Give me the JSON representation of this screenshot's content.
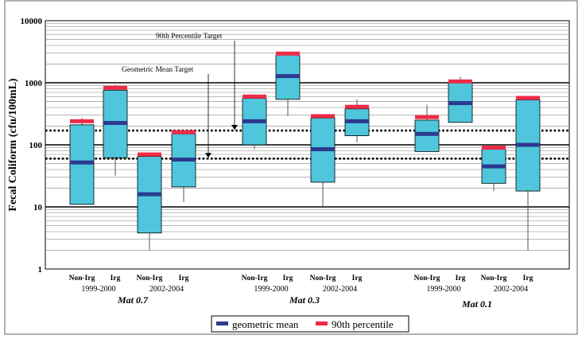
{
  "chart_data": {
    "type": "box",
    "ylabel": "Fecal Coliform (cfu/100mL)",
    "yscale": "log",
    "ylim": [
      1,
      10000
    ],
    "yticks": [
      "1",
      "10",
      "100",
      "1000",
      "10000"
    ],
    "grid": "minor log gridlines, major lines at decades",
    "target_lines": [
      {
        "label": "90th Percentile Target",
        "value": 170
      },
      {
        "label": "Geometric Mean Target",
        "value": 60
      }
    ],
    "sites": [
      "Mat 0.7",
      "Mat 0.3",
      "Mat 0.1"
    ],
    "periods": [
      "1999-2000",
      "2002-2004"
    ],
    "boxes": [
      {
        "site": "Mat 0.7",
        "period": "1999-2000",
        "label": "Non-Irg",
        "min": 11,
        "q1": 11,
        "q3": 210,
        "max": 270,
        "geomean": 52,
        "p90": 240
      },
      {
        "site": "Mat 0.7",
        "period": "1999-2000",
        "label": "Irg",
        "min": 32,
        "q1": 62,
        "q3": 760,
        "max": 930,
        "geomean": 225,
        "p90": 830
      },
      {
        "site": "Mat 0.7",
        "period": "2002-2004",
        "label": "Non-Irg",
        "min": 2,
        "q1": 3.8,
        "q3": 65,
        "max": 70,
        "geomean": 16,
        "p90": 70
      },
      {
        "site": "Mat 0.7",
        "period": "2002-2004",
        "label": "Irg",
        "min": 12,
        "q1": 21,
        "q3": 150,
        "max": 165,
        "geomean": 58,
        "p90": 160
      },
      {
        "site": "Mat 0.3",
        "period": "1999-2000",
        "label": "Non-Irg",
        "min": 85,
        "q1": 100,
        "q3": 560,
        "max": 650,
        "geomean": 240,
        "p90": 600
      },
      {
        "site": "Mat 0.3",
        "period": "1999-2000",
        "label": "Irg",
        "min": 290,
        "q1": 540,
        "q3": 2800,
        "max": 3200,
        "geomean": 1280,
        "p90": 2950
      },
      {
        "site": "Mat 0.3",
        "period": "2002-2004",
        "label": "Non-Irg",
        "min": 10,
        "q1": 25,
        "q3": 270,
        "max": 310,
        "geomean": 85,
        "p90": 290
      },
      {
        "site": "Mat 0.3",
        "period": "2002-2004",
        "label": "Irg",
        "min": 110,
        "q1": 140,
        "q3": 380,
        "max": 540,
        "geomean": 240,
        "p90": 410
      },
      {
        "site": "Mat 0.1",
        "period": "1999-2000",
        "label": "Non-Irg",
        "min": 78,
        "q1": 78,
        "q3": 250,
        "max": 440,
        "geomean": 150,
        "p90": 280
      },
      {
        "site": "Mat 0.1",
        "period": "1999-2000",
        "label": "Irg",
        "min": 230,
        "q1": 230,
        "q3": 1000,
        "max": 1250,
        "geomean": 470,
        "p90": 1050
      },
      {
        "site": "Mat 0.1",
        "period": "2002-2004",
        "label": "Non-Irg",
        "min": 18,
        "q1": 24,
        "q3": 85,
        "max": 95,
        "geomean": 45,
        "p90": 90
      },
      {
        "site": "Mat 0.1",
        "period": "2002-2004",
        "label": "Irg",
        "min": 2,
        "q1": 18,
        "q3": 530,
        "max": 610,
        "geomean": 100,
        "p90": 570
      }
    ],
    "legend": [
      {
        "label": "geometric mean",
        "color": "#2b3a8f"
      },
      {
        "label": "90th  percentile",
        "color": "#ee2b47"
      }
    ],
    "legend_position": "bottom-center",
    "colors": {
      "box_fill": "#4fc6dc",
      "geomean": "#2b3a8f",
      "p90": "#ee2b47"
    }
  }
}
